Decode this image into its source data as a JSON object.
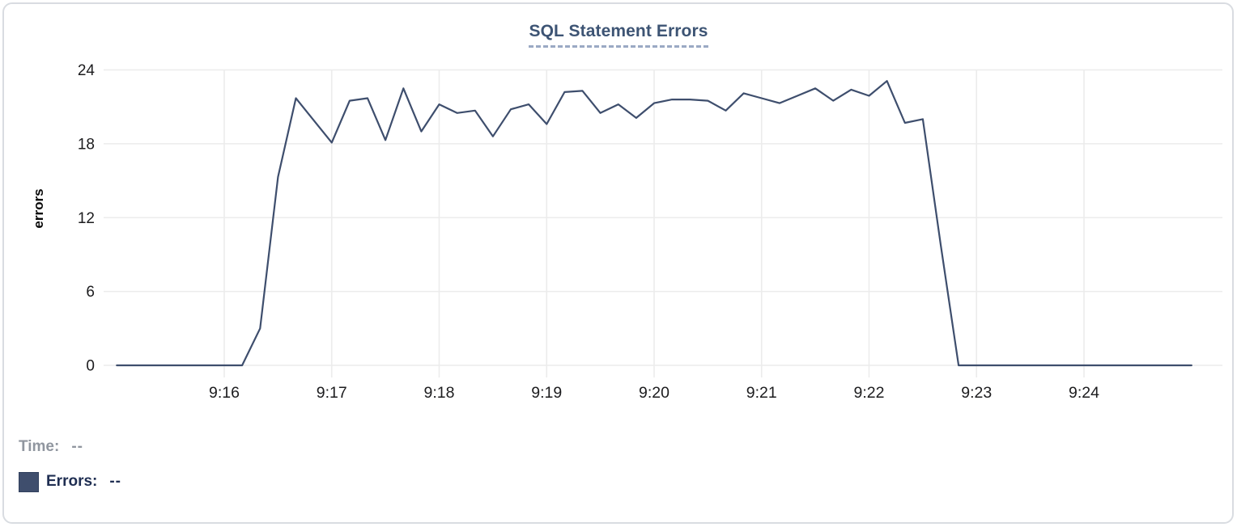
{
  "chart": {
    "title": "SQL Statement Errors",
    "y_axis_title": "errors"
  },
  "legend": {
    "time_label": "Time:",
    "time_value": "--",
    "errors_label": "Errors:",
    "errors_value": "--"
  },
  "colors": {
    "line": "#3e4e6d",
    "title": "#3d5474",
    "title_underline": "#9aa9c4",
    "grid": "#ececec",
    "tick_text": "#1c1c1e",
    "legend_muted": "#90969f",
    "legend_dark": "#1f2e52",
    "swatch": "#3f4e6d"
  },
  "chart_data": {
    "type": "line",
    "title": "SQL Statement Errors",
    "xlabel": "",
    "ylabel": "errors",
    "grid": true,
    "legend_position": "bottom-left",
    "ylim": [
      0,
      24
    ],
    "y_ticks": [
      0,
      6,
      12,
      18,
      24
    ],
    "x_ticks": [
      "9:16",
      "9:17",
      "9:18",
      "9:19",
      "9:20",
      "9:21",
      "9:22",
      "9:23",
      "9:24"
    ],
    "interval_seconds": 10,
    "series": [
      {
        "name": "Errors",
        "color": "#3e4e6d",
        "x": [
          "9:15:00",
          "9:15:10",
          "9:15:20",
          "9:15:30",
          "9:15:40",
          "9:15:50",
          "9:16:00",
          "9:16:10",
          "9:16:20",
          "9:16:30",
          "9:16:40",
          "9:16:50",
          "9:17:00",
          "9:17:10",
          "9:17:20",
          "9:17:30",
          "9:17:40",
          "9:17:50",
          "9:18:00",
          "9:18:10",
          "9:18:20",
          "9:18:30",
          "9:18:40",
          "9:18:50",
          "9:19:00",
          "9:19:10",
          "9:19:20",
          "9:19:30",
          "9:19:40",
          "9:19:50",
          "9:20:00",
          "9:20:10",
          "9:20:20",
          "9:20:30",
          "9:20:40",
          "9:20:50",
          "9:21:00",
          "9:21:10",
          "9:21:20",
          "9:21:30",
          "9:21:40",
          "9:21:50",
          "9:22:00",
          "9:22:10",
          "9:22:20",
          "9:22:30",
          "9:22:40",
          "9:22:50",
          "9:23:00",
          "9:23:10",
          "9:23:20",
          "9:23:30",
          "9:23:40",
          "9:23:50",
          "9:24:00",
          "9:24:10",
          "9:24:20",
          "9:24:30",
          "9:24:40",
          "9:24:50",
          "9:25:00"
        ],
        "y": [
          0,
          0,
          0,
          0,
          0,
          0,
          0,
          0,
          3,
          15.3,
          21.7,
          19.9,
          18.1,
          21.5,
          21.7,
          18.3,
          22.5,
          19,
          21.2,
          20.5,
          20.7,
          18.6,
          20.8,
          21.2,
          19.6,
          22.2,
          22.3,
          20.5,
          21.2,
          20.1,
          21.3,
          21.6,
          21.6,
          21.5,
          20.7,
          22.1,
          21.7,
          21.3,
          21.9,
          22.5,
          21.5,
          22.4,
          21.9,
          23.1,
          19.7,
          20,
          9.8,
          0,
          0,
          0,
          0,
          0,
          0,
          0,
          0,
          0,
          0,
          0,
          0,
          0,
          0
        ]
      }
    ]
  }
}
